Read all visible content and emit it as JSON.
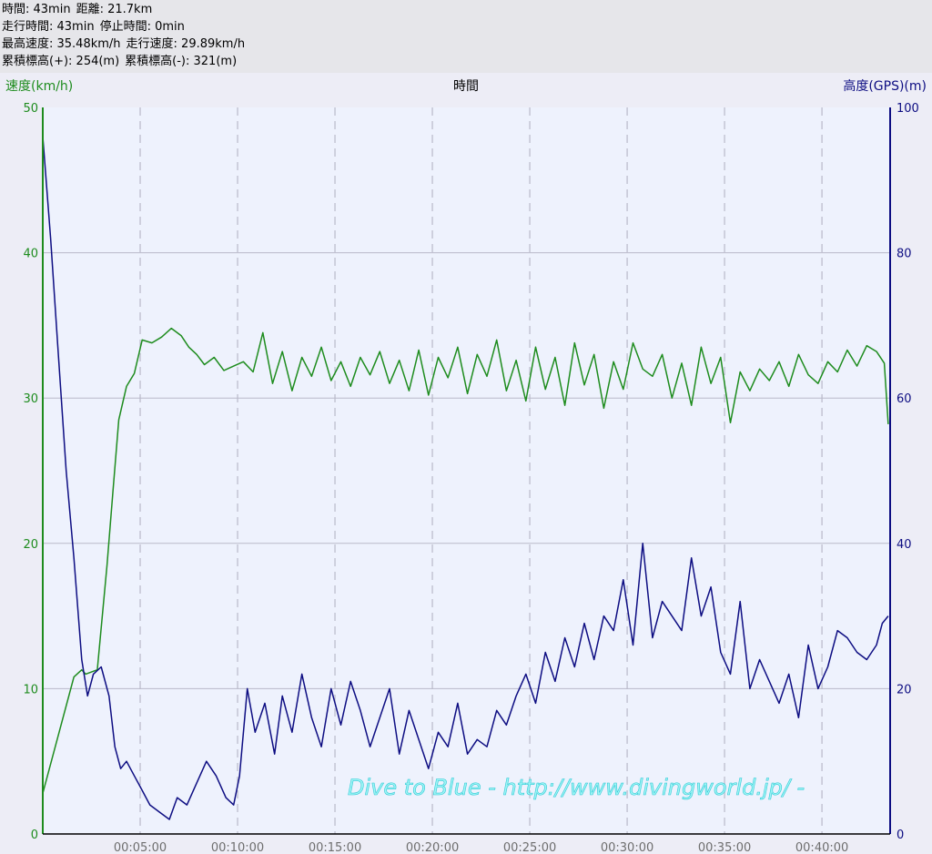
{
  "stats": {
    "row1": [
      "時間: 43min",
      "距離: 21.7km"
    ],
    "row2": [
      "走行時間: 43min",
      "停止時間: 0min"
    ],
    "row3": [
      "最高速度: 35.48km/h",
      "走行速度: 29.89km/h"
    ],
    "row4": [
      "累積標高(+): 254(m)",
      "累積標高(-): 321(m)"
    ]
  },
  "colors": {
    "speed": "#1e8c1e",
    "altitude": "#0d0d82",
    "grid": "#b9b9c9",
    "plot_bg": "#eef2fd"
  },
  "watermark": "Dive to Blue - http://www.divingworld.jp/ -",
  "chart_data": {
    "type": "line",
    "xlabel": "時間",
    "ylabel_left": "速度(km/h)",
    "ylabel_right": "高度(GPS)(m)",
    "xlim_min": [
      0,
      43.5
    ],
    "ylim_left": [
      0,
      50
    ],
    "ylim_right": [
      0,
      100
    ],
    "x_ticks_min": [
      5,
      10,
      15,
      20,
      25,
      30,
      35,
      40
    ],
    "x_tick_labels": [
      "00:05:00",
      "00:10:00",
      "00:15:00",
      "00:20:00",
      "00:25:00",
      "00:30:00",
      "00:35:00",
      "00:40:00"
    ],
    "y_ticks_left": [
      0,
      10,
      20,
      30,
      40,
      50
    ],
    "y_ticks_right": [
      0,
      20,
      40,
      60,
      80,
      100
    ],
    "grid": true,
    "series": [
      {
        "name": "速度(km/h)",
        "axis": "left",
        "x_min": [
          0,
          1.6,
          2.0,
          2.2,
          2.8,
          3.3,
          3.6,
          3.9,
          4.3,
          4.7,
          5.1,
          5.6,
          6.1,
          6.6,
          7.1,
          7.5,
          7.9,
          8.3,
          8.8,
          9.3,
          9.8,
          10.3,
          10.8,
          11.3,
          11.8,
          12.3,
          12.8,
          13.3,
          13.8,
          14.3,
          14.8,
          15.3,
          15.8,
          16.3,
          16.8,
          17.3,
          17.8,
          18.3,
          18.8,
          19.3,
          19.8,
          20.3,
          20.8,
          21.3,
          21.8,
          22.3,
          22.8,
          23.3,
          23.8,
          24.3,
          24.8,
          25.3,
          25.8,
          26.3,
          26.8,
          27.3,
          27.8,
          28.3,
          28.8,
          29.3,
          29.8,
          30.3,
          30.8,
          31.3,
          31.8,
          32.3,
          32.8,
          33.3,
          33.8,
          34.3,
          34.8,
          35.3,
          35.8,
          36.3,
          36.8,
          37.3,
          37.8,
          38.3,
          38.8,
          39.3,
          39.8,
          40.3,
          40.8,
          41.3,
          41.8,
          42.3,
          42.8,
          43.2,
          43.4
        ],
        "values": [
          2.8,
          10.8,
          11.3,
          11.0,
          11.3,
          18.5,
          23.5,
          28.5,
          30.8,
          31.7,
          34.0,
          33.8,
          34.2,
          34.8,
          34.3,
          33.5,
          33.0,
          32.3,
          32.8,
          31.9,
          32.2,
          32.5,
          31.8,
          34.5,
          31.0,
          33.2,
          30.5,
          32.8,
          31.5,
          33.5,
          31.2,
          32.5,
          30.8,
          32.8,
          31.6,
          33.2,
          31.0,
          32.6,
          30.5,
          33.3,
          30.2,
          32.8,
          31.4,
          33.5,
          30.3,
          33.0,
          31.5,
          34.0,
          30.5,
          32.6,
          29.8,
          33.5,
          30.6,
          32.8,
          29.5,
          33.8,
          30.9,
          33.0,
          29.3,
          32.5,
          30.6,
          33.8,
          32.0,
          31.5,
          33.0,
          30.0,
          32.4,
          29.5,
          33.5,
          31.0,
          32.8,
          28.3,
          31.8,
          30.5,
          32.0,
          31.2,
          32.5,
          30.8,
          33.0,
          31.6,
          31.0,
          32.5,
          31.8,
          33.3,
          32.2,
          33.6,
          33.2,
          32.4,
          28.2
        ]
      },
      {
        "name": "高度(GPS)(m)",
        "axis": "right",
        "x_min": [
          0,
          0.4,
          0.8,
          1.2,
          1.6,
          2.0,
          2.3,
          2.6,
          3.0,
          3.4,
          3.7,
          4.0,
          4.3,
          4.7,
          5.1,
          5.5,
          6.0,
          6.5,
          6.9,
          7.4,
          7.9,
          8.4,
          8.9,
          9.4,
          9.8,
          10.1,
          10.5,
          10.9,
          11.4,
          11.9,
          12.3,
          12.8,
          13.3,
          13.8,
          14.3,
          14.8,
          15.3,
          15.8,
          16.3,
          16.8,
          17.3,
          17.8,
          18.3,
          18.8,
          19.3,
          19.8,
          20.3,
          20.8,
          21.3,
          21.8,
          22.3,
          22.8,
          23.3,
          23.8,
          24.3,
          24.8,
          25.3,
          25.8,
          26.3,
          26.8,
          27.3,
          27.8,
          28.3,
          28.8,
          29.3,
          29.8,
          30.3,
          30.8,
          31.3,
          31.8,
          32.3,
          32.8,
          33.3,
          33.8,
          34.3,
          34.8,
          35.3,
          35.8,
          36.3,
          36.8,
          37.3,
          37.8,
          38.3,
          38.8,
          39.3,
          39.8,
          40.3,
          40.8,
          41.3,
          41.8,
          42.3,
          42.8,
          43.1,
          43.4
        ],
        "values": [
          96,
          82,
          66,
          50,
          38,
          24,
          19,
          22,
          23,
          19,
          12,
          9,
          10,
          8,
          6,
          4,
          3,
          2,
          5,
          4,
          7,
          10,
          8,
          5,
          4,
          8,
          20,
          14,
          18,
          11,
          19,
          14,
          22,
          16,
          12,
          20,
          15,
          21,
          17,
          12,
          16,
          20,
          11,
          17,
          13,
          9,
          14,
          12,
          18,
          11,
          13,
          12,
          17,
          15,
          19,
          22,
          18,
          25,
          21,
          27,
          23,
          29,
          24,
          30,
          28,
          35,
          26,
          40,
          27,
          32,
          30,
          28,
          38,
          30,
          34,
          25,
          22,
          32,
          20,
          24,
          21,
          18,
          22,
          16,
          26,
          20,
          23,
          28,
          27,
          25,
          24,
          26,
          29,
          30
        ]
      }
    ]
  }
}
